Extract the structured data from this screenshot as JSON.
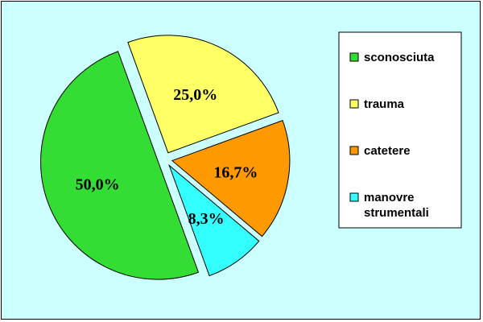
{
  "chart_data": {
    "type": "pie",
    "title": "",
    "categories": [
      "sconosciuta",
      "trauma",
      "catetere",
      "manovre strumentali"
    ],
    "legend_lines": [
      [
        "sconosciuta"
      ],
      [
        "trauma"
      ],
      [
        "catetere"
      ],
      [
        "manovre",
        "strumentali"
      ]
    ],
    "values": [
      50.0,
      25.0,
      16.7,
      8.3
    ],
    "labels": [
      "50,0%",
      "25,0%",
      "16,7%",
      "8,3%"
    ],
    "colors": [
      "#33dd33",
      "#ffff66",
      "#ff9900",
      "#33ffff"
    ],
    "exploded": true,
    "legend": "right"
  },
  "style": {
    "background": "#ccffff",
    "border": "#000000"
  }
}
